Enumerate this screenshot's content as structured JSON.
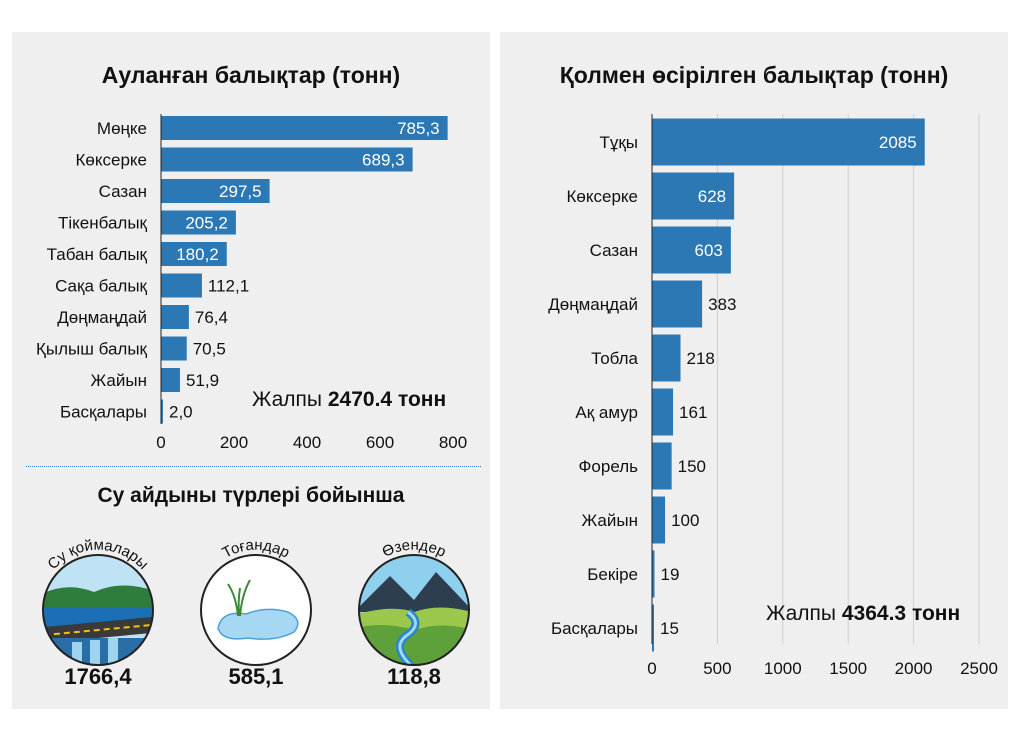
{
  "left": {
    "title": "Ауланған балықтар (тонн)",
    "total_prefix": "Жалпы",
    "total_value": "2470.4 тонн",
    "subtitle": "Су айдыны түрлері бойынша",
    "water_bodies": [
      {
        "label": "Су қоймалары",
        "value": "1766,4",
        "icon": "reservoir-dam-icon"
      },
      {
        "label": "Тоғандар",
        "value": "585,1",
        "icon": "pond-icon"
      },
      {
        "label": "Өзендер",
        "value": "118,8",
        "icon": "river-mountains-icon"
      }
    ]
  },
  "right": {
    "title": "Қолмен өсірілген балықтар (тонн)",
    "total_prefix": "Жалпы",
    "total_value": "4364.3 тонн"
  },
  "colors": {
    "bar": "#2b78b4",
    "panel": "#efefef",
    "divider": "#3a79b7"
  },
  "chart_data": [
    {
      "type": "bar",
      "orientation": "horizontal",
      "title": "Ауланған балықтар (тонн)",
      "categories": [
        "Мөңке",
        "Көксерке",
        "Сазан",
        "Тікенбалық",
        "Табан балық",
        "Сақа балық",
        "Дөңмаңдай",
        "Қылыш балық",
        "Жайын",
        "Басқалары"
      ],
      "values": [
        785.3,
        689.3,
        297.5,
        205.2,
        180.2,
        112.1,
        76.4,
        70.5,
        51.9,
        2.0
      ],
      "value_labels": [
        "785,3",
        "689,3",
        "297,5",
        "205,2",
        "180,2",
        "112,1",
        "76,4",
        "70,5",
        "51,9",
        "2,0"
      ],
      "xlim": [
        0,
        800
      ],
      "xticks": [
        0,
        200,
        400,
        600,
        800
      ],
      "grid": false
    },
    {
      "type": "bar",
      "orientation": "horizontal",
      "title": "Қолмен өсірілген балықтар (тонн)",
      "categories": [
        "Тұқы",
        "Көксерке",
        "Сазан",
        "Дөңмаңдай",
        "Тобла",
        "Ақ амур",
        "Форель",
        "Жайын",
        "Бекіре",
        "Басқалары"
      ],
      "values": [
        2085,
        628,
        603,
        383,
        218,
        161,
        150,
        100,
        19,
        15
      ],
      "value_labels": [
        "2085",
        "628",
        "603",
        "383",
        "218",
        "161",
        "150",
        "100",
        "19",
        "15"
      ],
      "xlim": [
        0,
        2500
      ],
      "xticks": [
        0,
        500,
        1000,
        1500,
        2000,
        2500
      ],
      "grid": true
    }
  ]
}
